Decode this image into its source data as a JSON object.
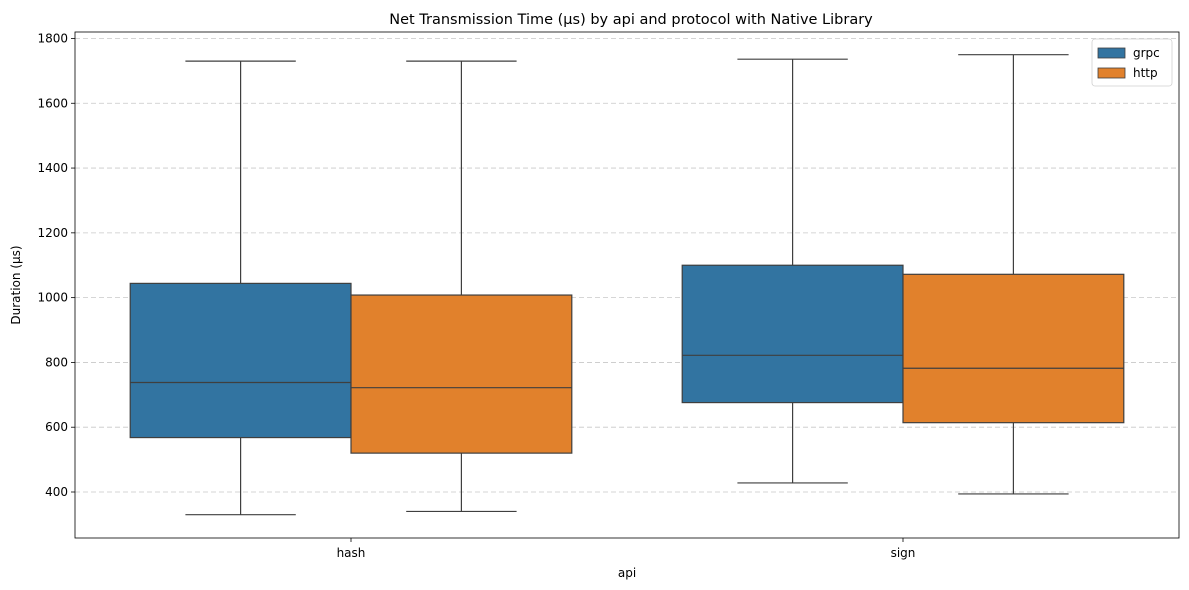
{
  "chart_data": {
    "type": "box",
    "title": "Net Transmission Time (µs) by api and protocol with Native Library",
    "xlabel": "api",
    "ylabel": "Duration (µs)",
    "categories": [
      "hash",
      "sign"
    ],
    "ylim": [
      258,
      1820
    ],
    "yticks": [
      400,
      600,
      800,
      1000,
      1200,
      1400,
      1600,
      1800
    ],
    "grid": "y-dashed",
    "legend_position": "top-right",
    "series": [
      {
        "name": "grpc",
        "color": "#3274a1",
        "boxes": [
          {
            "whisker_low": 330,
            "q1": 568,
            "median": 738,
            "q3": 1044,
            "whisker_high": 1730
          },
          {
            "whisker_low": 428,
            "q1": 676,
            "median": 822,
            "q3": 1100,
            "whisker_high": 1736
          }
        ]
      },
      {
        "name": "http",
        "color": "#e1812c",
        "boxes": [
          {
            "whisker_low": 340,
            "q1": 520,
            "median": 722,
            "q3": 1008,
            "whisker_high": 1730
          },
          {
            "whisker_low": 394,
            "q1": 614,
            "median": 782,
            "q3": 1072,
            "whisker_high": 1750
          }
        ]
      }
    ]
  }
}
